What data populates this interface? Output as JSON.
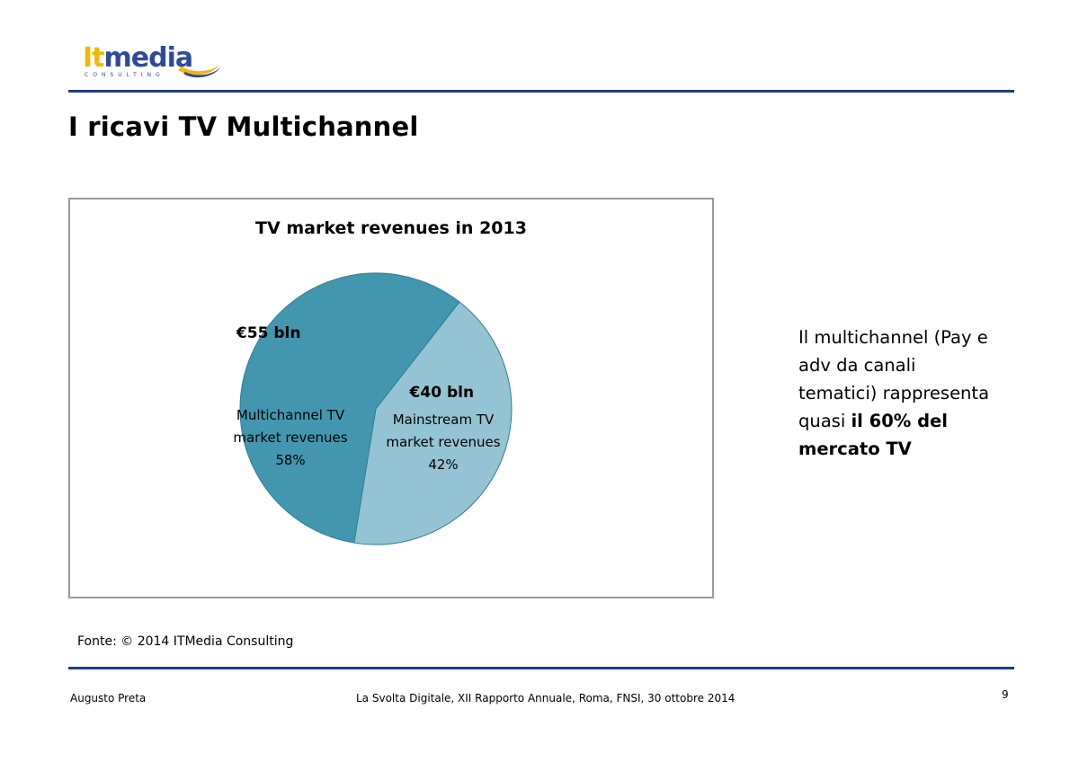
{
  "logo": {
    "part1": "It",
    "part2": "media",
    "subtitle": "CONSULTING",
    "colors": {
      "it": "#f2b705",
      "media": "#2e4b9b"
    }
  },
  "slide": {
    "title": "I ricavi TV Multichannel",
    "source": "Fonte: © 2014 ITMedia Consulting",
    "side_text": {
      "line1": "Il multichannel (Pay e",
      "line2": "adv da canali",
      "line3": "tematici) rappresenta",
      "line4_prefix": "quasi ",
      "line4_bold": "il 60% del",
      "line5_bold": "mercato TV"
    },
    "page_number": "9"
  },
  "footer": {
    "author": "Augusto Preta",
    "event": "La Svolta Digitale, XII Rapporto Annuale, Roma, FNSI, 30 ottobre 2014"
  },
  "chart_data": {
    "type": "pie",
    "title": "TV market revenues in 2013",
    "slices": [
      {
        "name": "Multichannel TV market revenues",
        "label_lines": [
          "Multichannel TV",
          "market revenues",
          "58%"
        ],
        "value_label": "€55 bln",
        "value": 55,
        "percent": 58,
        "color": "#4297ae"
      },
      {
        "name": "Mainstream TV market revenues",
        "label_lines": [
          "Mainstream TV",
          "market revenues",
          "42%"
        ],
        "value_label": "€40 bln",
        "value": 40,
        "percent": 42,
        "color": "#94c4d3"
      }
    ],
    "legend": "none"
  }
}
